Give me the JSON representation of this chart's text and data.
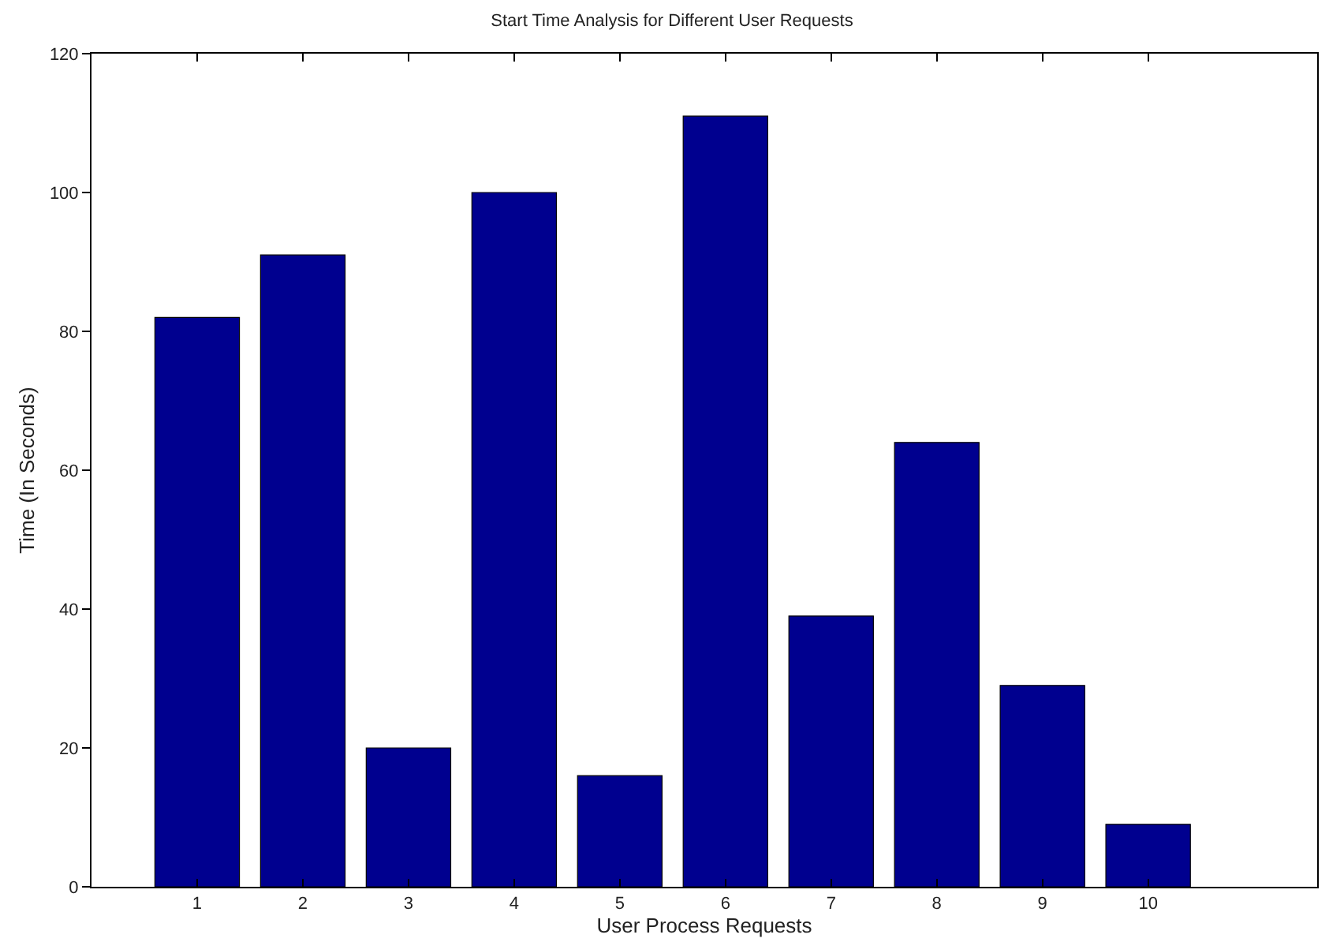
{
  "chart_data": {
    "type": "bar",
    "title": "Start Time Analysis for Different User Requests",
    "xlabel": "User Process Requests",
    "ylabel": "Time (In Seconds)",
    "x": [
      1,
      2,
      3,
      4,
      5,
      6,
      7,
      8,
      9,
      10
    ],
    "values": [
      82,
      91,
      20,
      100,
      16,
      111,
      39,
      64,
      29,
      9
    ],
    "color": "#00008f",
    "xlim": [
      0,
      11.6
    ],
    "xticks": [
      1,
      2,
      3,
      4,
      5,
      6,
      7,
      8,
      9,
      10
    ],
    "ylim": [
      0,
      120
    ],
    "yticks": [
      0,
      20,
      40,
      60,
      80,
      100,
      120
    ],
    "grid": false,
    "legend": false
  }
}
